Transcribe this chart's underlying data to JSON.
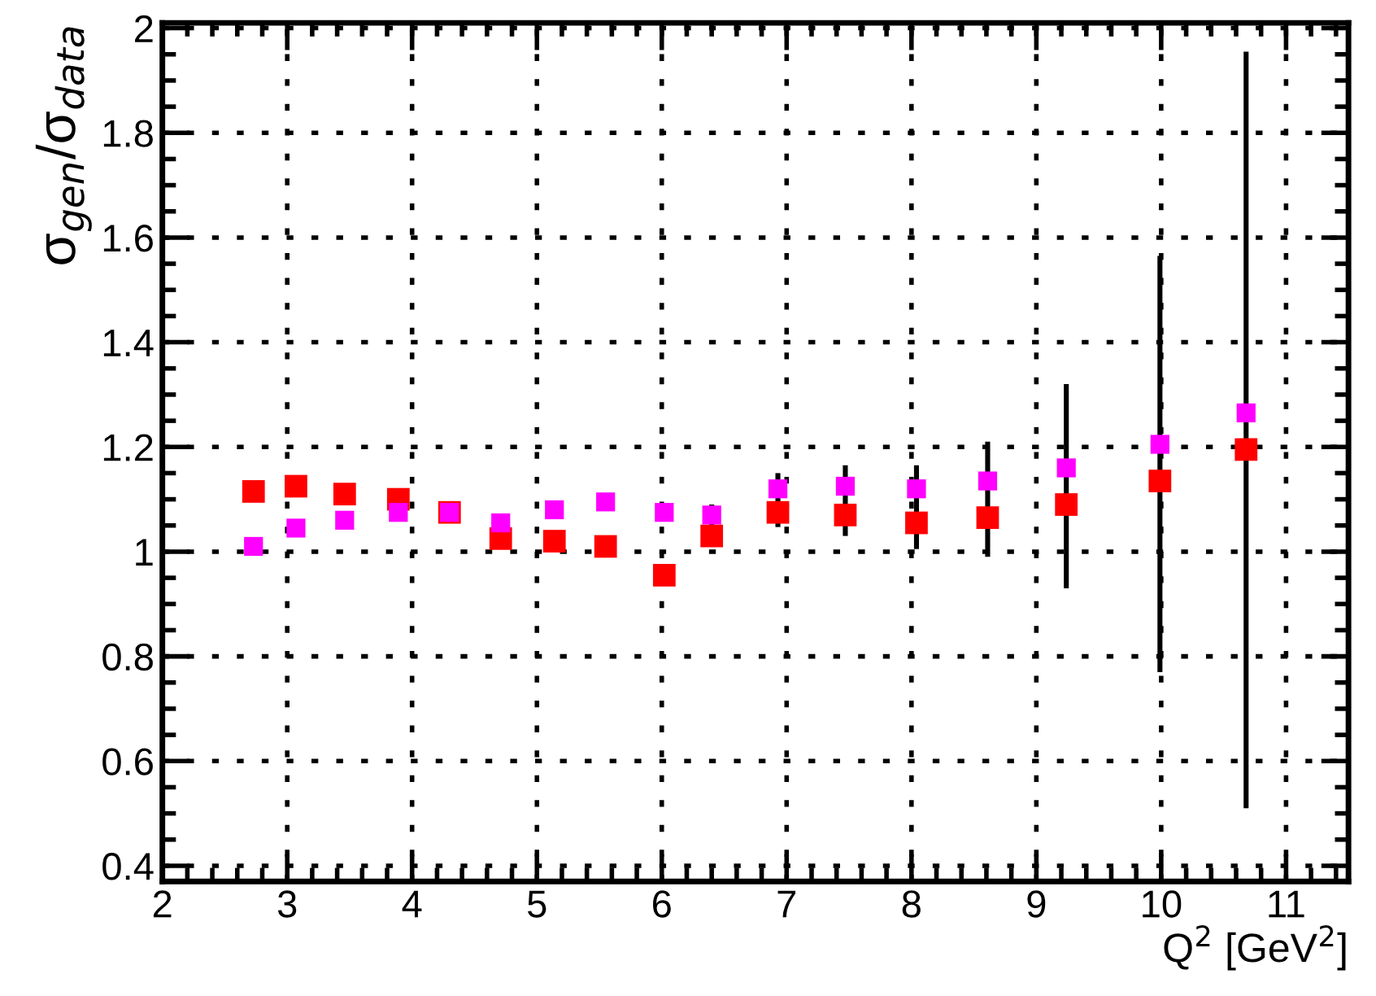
{
  "chart_data": {
    "type": "scatter",
    "xlabel": "Q$^{2}$ [GeV$^{2}$]",
    "ylabel": "σ$_{gen}$/σ$_{data}$",
    "xlim": [
      2,
      11.5
    ],
    "xticks": [
      2,
      3,
      4,
      5,
      6,
      7,
      8,
      9,
      10,
      11
    ],
    "ylim": [
      0.37,
      2.01
    ],
    "yticks": [
      0.4,
      0.6,
      0.8,
      1,
      1.2,
      1.4,
      1.6,
      1.8,
      2
    ],
    "grid": true,
    "marker": "square",
    "legend": false,
    "series": [
      {
        "color": "#ff0000",
        "x": [
          2.73,
          3.07,
          3.46,
          3.89,
          4.3,
          4.71,
          5.14,
          5.55,
          6.02,
          6.4,
          6.93,
          7.47,
          8.04,
          8.61,
          9.24,
          9.99,
          10.68
        ],
        "values": [
          1.115,
          1.125,
          1.11,
          1.1,
          1.075,
          1.025,
          1.02,
          1.01,
          0.955,
          1.03,
          1.075,
          1.07,
          1.055,
          1.065,
          1.09,
          1.135,
          1.195
        ],
        "errors": [
          null,
          null,
          null,
          null,
          null,
          null,
          null,
          null,
          null,
          [
            1.01,
            1.09
          ],
          [
            1.047,
            1.15
          ],
          [
            1.03,
            1.165
          ],
          [
            1.005,
            1.165
          ],
          [
            0.99,
            1.21
          ],
          [
            0.93,
            1.32
          ],
          [
            0.77,
            1.565
          ],
          [
            0.51,
            1.955
          ]
        ]
      },
      {
        "color": "#ff00ff",
        "x": [
          2.73,
          3.07,
          3.46,
          3.89,
          4.3,
          4.71,
          5.14,
          5.55,
          6.02,
          6.4,
          6.93,
          7.47,
          8.04,
          8.61,
          9.24,
          9.99,
          10.68
        ],
        "values": [
          1.01,
          1.045,
          1.06,
          1.075,
          1.075,
          1.055,
          1.08,
          1.095,
          1.075,
          1.07,
          1.12,
          1.125,
          1.12,
          1.135,
          1.16,
          1.205,
          1.265
        ]
      }
    ]
  }
}
